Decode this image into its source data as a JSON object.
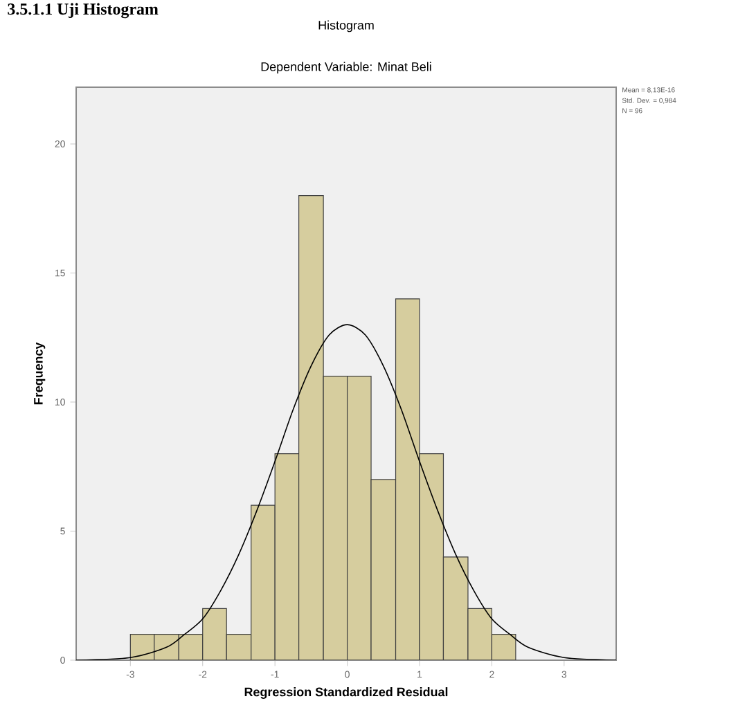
{
  "chart_data": {
    "type": "histogram",
    "title": "Histogram",
    "subtitle": "Dependent Variable: Minat Beli",
    "xlabel": "Regression Standardized Residual",
    "ylabel": "Frequency",
    "bins": [
      -3,
      -2.67,
      -2.33,
      -2,
      -1.67,
      -1.33,
      -1,
      -0.67,
      -0.33,
      0,
      0.33,
      0.67,
      1,
      1.33,
      1.67,
      2,
      2.33
    ],
    "values": [
      1,
      1,
      1,
      2,
      1,
      6,
      8,
      18,
      11,
      11,
      7,
      14,
      8,
      4,
      2,
      1
    ],
    "color": "#d6cd9e",
    "series": [
      {
        "type": "line",
        "color": "#000000",
        "x": [
          -3.75,
          -3,
          -2.5,
          -2.25,
          -2,
          -1.75,
          -1.5,
          -1.25,
          -1,
          -0.75,
          -0.5,
          -0.25,
          0,
          0.25,
          0.5,
          0.75,
          1,
          1.25,
          1.5,
          1.75,
          2,
          2.25,
          2.5,
          3,
          3.72
        ],
        "values": [
          0,
          0.1,
          0.5,
          1.0,
          1.6,
          2.7,
          4.1,
          5.8,
          7.7,
          9.7,
          11.4,
          12.6,
          13.0,
          12.6,
          11.4,
          9.7,
          7.7,
          5.8,
          4.1,
          2.7,
          1.6,
          1.0,
          0.5,
          0.1,
          0
        ]
      }
    ],
    "xlim": [
      -3.75,
      3.72
    ],
    "ylim": [
      0,
      22.2
    ],
    "xticks": [
      -3,
      -2,
      -1,
      0,
      1,
      2,
      3
    ],
    "yticks": [
      0,
      5,
      10,
      15,
      20
    ],
    "annotations": [
      "3.5.1.1 Uji Histogram",
      "Mean = 8,13E-16",
      "Std. Dev. = 0,984",
      "N = 96"
    ]
  }
}
